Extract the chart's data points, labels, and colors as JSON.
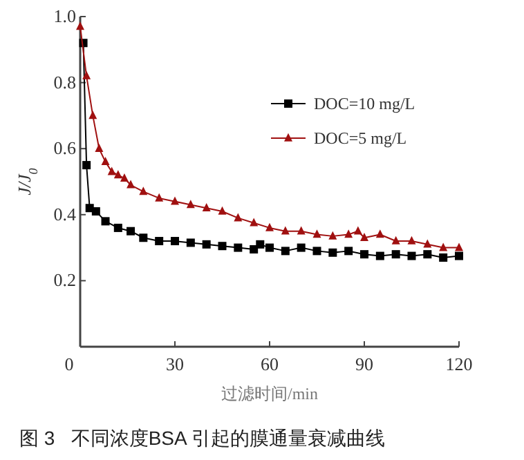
{
  "chart_data": {
    "type": "line",
    "title": "图 3   不同浓度BSA 引起的膜通量衰减曲线",
    "xlabel": "过滤时间/min",
    "ylabel": "J/J$_{0}$",
    "xlim": [
      0,
      120
    ],
    "ylim": [
      0,
      1.0
    ],
    "xticks": [
      0,
      30,
      60,
      90,
      120
    ],
    "yticks": [
      0.2,
      0.4,
      0.6,
      0.8,
      {
        "value": 1.0,
        "label": "1.0"
      }
    ],
    "grid": false,
    "legend": "top right",
    "series": [
      {
        "name": "DOC=10 mg/L",
        "color": "#000000",
        "marker": "square",
        "x": [
          1,
          2,
          3,
          5,
          8,
          12,
          16,
          20,
          25,
          30,
          35,
          40,
          45,
          50,
          55,
          57,
          60,
          65,
          70,
          75,
          80,
          85,
          90,
          95,
          100,
          105,
          110,
          115,
          120
        ],
        "values": [
          0.92,
          0.55,
          0.42,
          0.41,
          0.38,
          0.36,
          0.35,
          0.33,
          0.32,
          0.32,
          0.315,
          0.31,
          0.305,
          0.3,
          0.295,
          0.31,
          0.3,
          0.29,
          0.3,
          0.29,
          0.285,
          0.29,
          0.28,
          0.275,
          0.28,
          0.275,
          0.28,
          0.27,
          0.275
        ]
      },
      {
        "name": "DOC=5 mg/L",
        "color": "#a01010",
        "marker": "triangle",
        "x": [
          0,
          2,
          4,
          6,
          8,
          10,
          12,
          14,
          16,
          20,
          25,
          30,
          35,
          40,
          45,
          50,
          55,
          60,
          65,
          70,
          75,
          80,
          85,
          88,
          90,
          95,
          100,
          105,
          110,
          115,
          120
        ],
        "values": [
          0.97,
          0.82,
          0.7,
          0.6,
          0.56,
          0.53,
          0.52,
          0.51,
          0.49,
          0.47,
          0.45,
          0.44,
          0.43,
          0.42,
          0.41,
          0.39,
          0.375,
          0.36,
          0.35,
          0.35,
          0.34,
          0.335,
          0.34,
          0.35,
          0.33,
          0.34,
          0.32,
          0.32,
          0.31,
          0.3,
          0.3
        ]
      }
    ]
  }
}
